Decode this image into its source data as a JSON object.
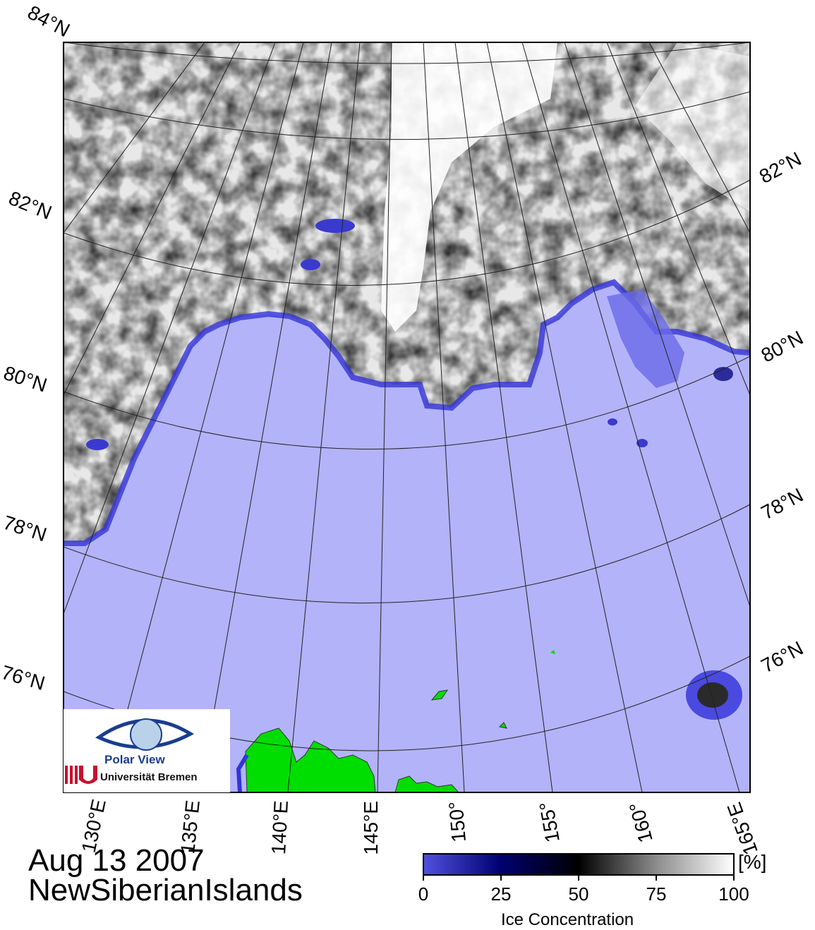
{
  "map": {
    "date": "Aug 13 2007",
    "region": "NewSiberianIslands",
    "lat_labels_left": [
      "84°N",
      "82°N",
      "80°N",
      "78°N",
      "76°N"
    ],
    "lat_labels_right": [
      "82°N",
      "80°N",
      "78°N",
      "76°N"
    ],
    "lon_labels": [
      "130°E",
      "135°E",
      "140°E",
      "145°E",
      "150°",
      "155°",
      "160°",
      "165°E"
    ]
  },
  "colorbar": {
    "title": "Ice Concentration",
    "unit": "[%]",
    "ticks": [
      "0",
      "25",
      "50",
      "75",
      "100"
    ],
    "colors": [
      "#6a6af0",
      "#000070",
      "#000000",
      "#808080",
      "#ffffff"
    ]
  },
  "logo": {
    "title": "Polar View",
    "institution": "Universität Bremen"
  },
  "colors": {
    "open_water": "#b3b3fa",
    "land": "#00dd00",
    "ice_edge": "#3a3ae0"
  }
}
